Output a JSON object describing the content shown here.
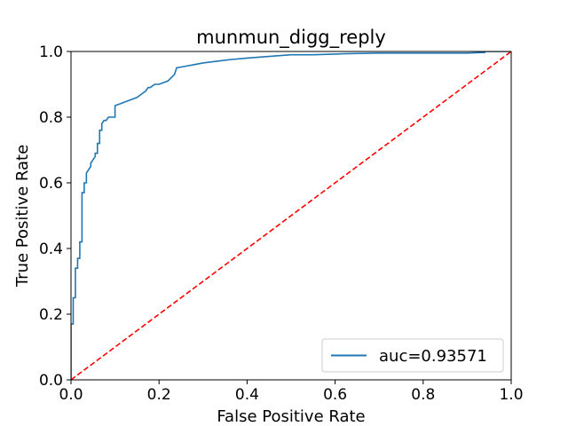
{
  "chart_data": {
    "type": "line",
    "title": "munmun_digg_reply",
    "xlabel": "False Positive Rate",
    "ylabel": "True Positive Rate",
    "xlim": [
      0.0,
      1.0
    ],
    "ylim": [
      0.0,
      1.0
    ],
    "xticks": [
      "0.0",
      "0.2",
      "0.4",
      "0.6",
      "0.8",
      "1.0"
    ],
    "yticks": [
      "0.0",
      "0.2",
      "0.4",
      "0.6",
      "0.8",
      "1.0"
    ],
    "grid": false,
    "legend_position": "bottom-right",
    "series": [
      {
        "name": "auc=0.93571",
        "color": "#1f77b4",
        "style": "solid",
        "x": [
          0.0,
          0.0,
          0.005,
          0.005,
          0.01,
          0.01,
          0.015,
          0.015,
          0.02,
          0.02,
          0.025,
          0.025,
          0.03,
          0.03,
          0.035,
          0.035,
          0.04,
          0.045,
          0.045,
          0.05,
          0.055,
          0.055,
          0.06,
          0.06,
          0.065,
          0.065,
          0.07,
          0.07,
          0.075,
          0.08,
          0.085,
          0.09,
          0.1,
          0.1,
          0.11,
          0.12,
          0.13,
          0.14,
          0.15,
          0.16,
          0.165,
          0.17,
          0.175,
          0.18,
          0.19,
          0.2,
          0.22,
          0.235,
          0.24,
          0.26,
          0.28,
          0.3,
          0.33,
          0.36,
          0.4,
          0.45,
          0.5,
          0.55,
          0.62,
          0.7,
          0.8,
          0.9,
          0.94,
          0.94,
          1.0
        ],
        "y": [
          0.0,
          0.17,
          0.17,
          0.25,
          0.25,
          0.34,
          0.34,
          0.37,
          0.37,
          0.42,
          0.42,
          0.57,
          0.57,
          0.6,
          0.6,
          0.63,
          0.64,
          0.65,
          0.66,
          0.67,
          0.68,
          0.69,
          0.69,
          0.72,
          0.72,
          0.76,
          0.76,
          0.78,
          0.79,
          0.79,
          0.8,
          0.8,
          0.8,
          0.835,
          0.84,
          0.845,
          0.85,
          0.855,
          0.86,
          0.87,
          0.875,
          0.88,
          0.89,
          0.89,
          0.9,
          0.9,
          0.91,
          0.93,
          0.95,
          0.955,
          0.96,
          0.965,
          0.97,
          0.975,
          0.98,
          0.985,
          0.99,
          0.99,
          0.993,
          0.995,
          0.995,
          0.995,
          0.997,
          1.0,
          1.0
        ]
      },
      {
        "name": "",
        "color": "#ff0000",
        "style": "dashed",
        "x": [
          0.0,
          1.0
        ],
        "y": [
          0.0,
          1.0
        ]
      }
    ]
  }
}
